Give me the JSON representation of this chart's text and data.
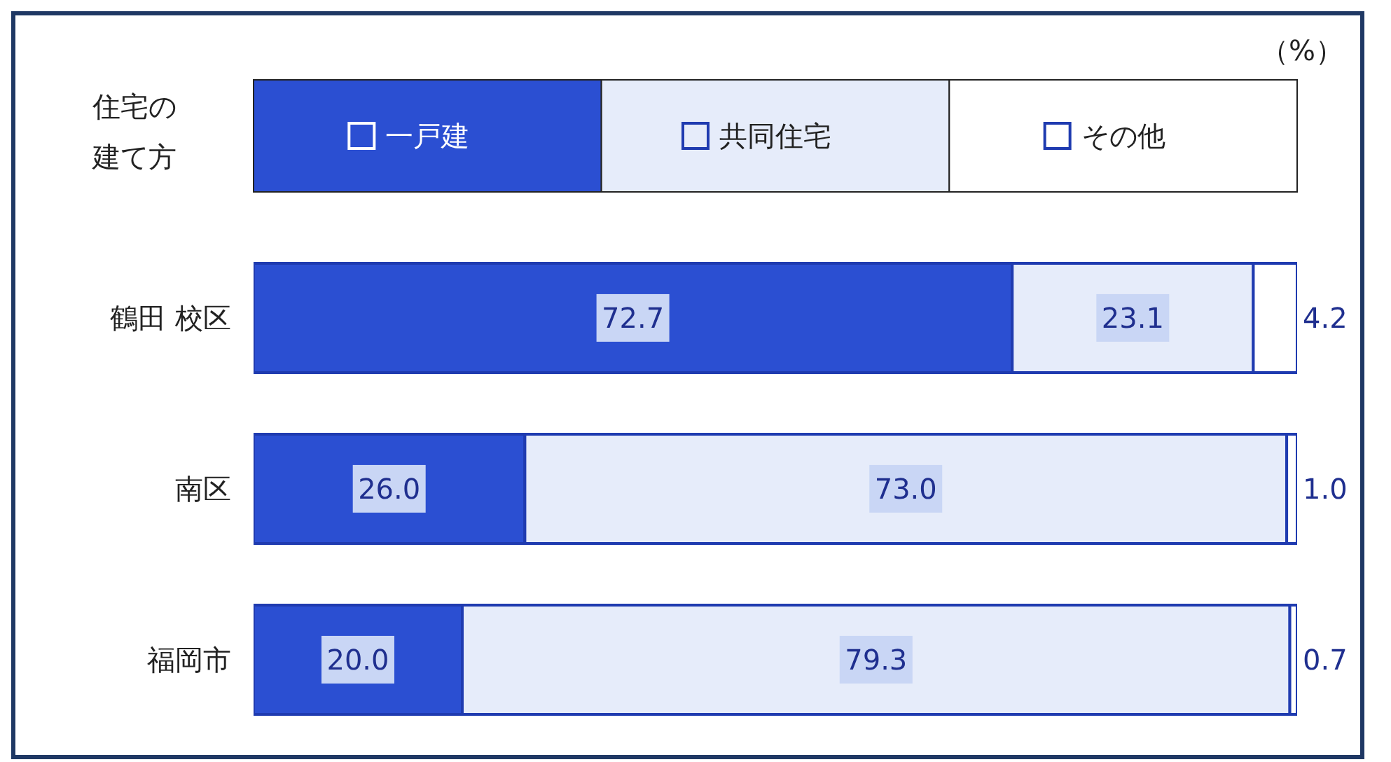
{
  "chart_data": {
    "type": "bar",
    "orientation": "horizontal",
    "stacked": true,
    "categories": [
      "鶴田 校区",
      "南区",
      "福岡市"
    ],
    "series": [
      {
        "name": "一戸建",
        "color": "#2b4fd2",
        "values": [
          72.7,
          26.0,
          20.0
        ],
        "value_labels": [
          "72.7",
          "26.0",
          "20.0"
        ]
      },
      {
        "name": "共同住宅",
        "color": "#e6ecfa",
        "values": [
          23.1,
          73.0,
          79.3
        ],
        "value_labels": [
          "23.1",
          "73.0",
          "79.3"
        ]
      },
      {
        "name": "その他",
        "color": "#ffffff",
        "values": [
          4.2,
          1.0,
          0.7
        ],
        "value_labels": [
          "4.2",
          "1.0",
          "0.7"
        ]
      }
    ],
    "xlim": [
      0,
      100
    ],
    "tick_labels": "y",
    "legend": "top",
    "legend_title": "住宅の建て方",
    "grid": false,
    "annotations": [
      "（%）"
    ]
  }
}
